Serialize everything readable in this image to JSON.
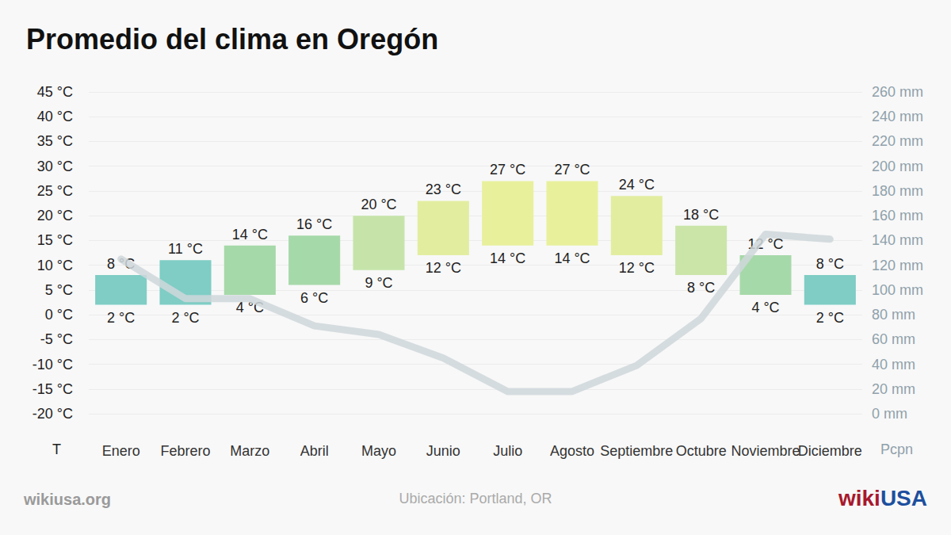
{
  "chart_data": {
    "type": "bar",
    "title": "Promedio del clima en Oregón",
    "categories": [
      "Enero",
      "Febrero",
      "Marzo",
      "Abril",
      "Mayo",
      "Junio",
      "Julio",
      "Agosto",
      "Septiembre",
      "Octubre",
      "Noviembre",
      "Diciembre"
    ],
    "series": [
      {
        "type": "bar",
        "values": [
          8,
          11,
          14,
          16,
          20,
          23,
          27,
          27,
          24,
          18,
          12,
          8
        ],
        "value_labels": [
          "8 °C",
          "11 °C",
          "14 °C",
          "16 °C",
          "20 °C",
          "23 °C",
          "27 °C",
          "27 °C",
          "24 °C",
          "18 °C",
          "12 °C",
          "8 °C"
        ],
        "base": [
          2,
          2,
          4,
          6,
          9,
          12,
          14,
          14,
          12,
          8,
          4,
          2
        ],
        "base_labels": [
          "2 °C",
          "2 °C",
          "4 °C",
          "6 °C",
          "9 °C",
          "12 °C",
          "14 °C",
          "14 °C",
          "12 °C",
          "8 °C",
          "4 °C",
          "2 °C"
        ],
        "colors": [
          "#7fcdc5",
          "#7fcdc5",
          "#a6d9a9",
          "#a6d9a9",
          "#c6e4aa",
          "#e3eda0",
          "#e8f09c",
          "#e8f09c",
          "#e3eda0",
          "#cbe5a9",
          "#a6d9a9",
          "#7fcdc5"
        ]
      },
      {
        "type": "line",
        "axis": "y2",
        "values": [
          125,
          93,
          93,
          71,
          64,
          45,
          18,
          18,
          39,
          77,
          145,
          141
        ],
        "color": "#cfd7db"
      }
    ],
    "ylabel": "T",
    "y2label": "Pcpn",
    "ylim": [
      -20,
      45
    ],
    "yticks": [
      {
        "value": -20,
        "label": "-20 °C"
      },
      {
        "value": -15,
        "label": "-15 °C"
      },
      {
        "value": -10,
        "label": "-10 °C"
      },
      {
        "value": -5,
        "label": "-5 °C"
      },
      {
        "value": 0,
        "label": "0 °C"
      },
      {
        "value": 5,
        "label": "5 °C"
      },
      {
        "value": 10,
        "label": "10 °C"
      },
      {
        "value": 15,
        "label": "15 °C"
      },
      {
        "value": 20,
        "label": "20 °C"
      },
      {
        "value": 25,
        "label": "25 °C"
      },
      {
        "value": 30,
        "label": "30 °C"
      },
      {
        "value": 35,
        "label": "35 °C"
      },
      {
        "value": 40,
        "label": "40 °C"
      },
      {
        "value": 45,
        "label": "45 °C"
      }
    ],
    "y2lim": [
      0,
      260
    ],
    "y2ticks": [
      {
        "value": 0,
        "label": "0 mm"
      },
      {
        "value": 20,
        "label": "20 mm"
      },
      {
        "value": 40,
        "label": "40 mm"
      },
      {
        "value": 60,
        "label": "60 mm"
      },
      {
        "value": 80,
        "label": "80 mm"
      },
      {
        "value": 100,
        "label": "100 mm"
      },
      {
        "value": 120,
        "label": "120 mm"
      },
      {
        "value": 140,
        "label": "140 mm"
      },
      {
        "value": 160,
        "label": "160 mm"
      },
      {
        "value": 180,
        "label": "180 mm"
      },
      {
        "value": 200,
        "label": "200 mm"
      },
      {
        "value": 220,
        "label": "220 mm"
      },
      {
        "value": 240,
        "label": "240 mm"
      },
      {
        "value": 260,
        "label": "260 mm"
      }
    ],
    "grid": true,
    "data_labels": true
  },
  "footer": {
    "source": "wikiusa.org",
    "location": "Ubicación: Portland, OR",
    "logo": [
      "wiki",
      "USA"
    ]
  }
}
